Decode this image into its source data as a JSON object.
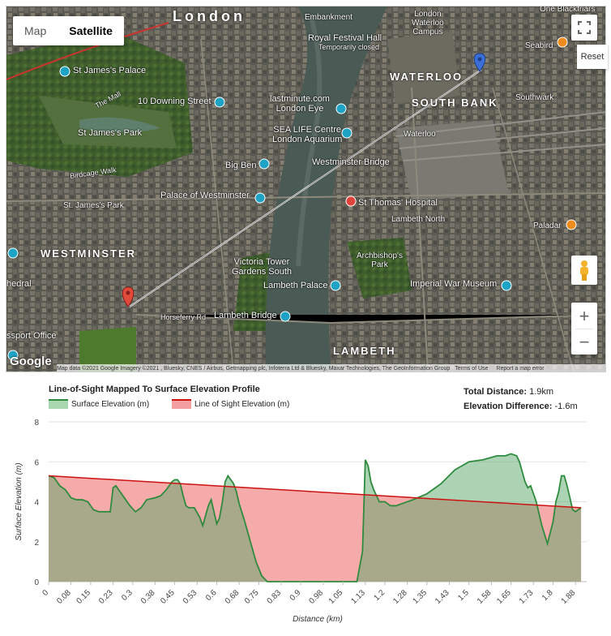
{
  "map": {
    "type_buttons": [
      "Map",
      "Satellite"
    ],
    "active_type": "Satellite",
    "reset_label": "Reset",
    "zoom_in": "+",
    "zoom_out": "−",
    "logo": "Google",
    "attribution": "Map data ©2021 Google Imagery ©2021 , Bluesky, CNES / Airbus, Getmapping plc, Infoterra Ltd & Bluesky, Maxar Technologies, The GeoInformation Group",
    "terms": "Terms of Use",
    "report": "Report a map error",
    "labels": {
      "london": "London",
      "embankment": "Embankment",
      "waterloo_campus": "London\nWaterloo\nCampus",
      "royal_festival_hall": "Royal Festival Hall",
      "temp_closed": "Temporarily closed",
      "one_blackfriars": "One Blackfriars",
      "seabird": "Seabird",
      "st_james_palace": "St James's Palace",
      "the_mall": "The Mall",
      "waterloo": "WATERLOO",
      "south_bank": "SOUTH BANK",
      "downing_street": "10 Downing Street",
      "lastminute": "lastminute.com\nLondon Eye",
      "southwark": "Southwark",
      "st_james_park": "St James's Park",
      "waterloo_station": "Waterloo",
      "sea_life": "SEA LIFE Centre\nLondon Aquarium",
      "big_ben": "Big Ben",
      "westminster_bridge": "Westminster Bridge",
      "birdcage_walk": "Birdcage Walk",
      "palace_westminster": "Palace of Westminster",
      "st_thomas": "St Thomas' Hospital",
      "st_james_park_stn": "St. James's Park",
      "lambeth_north": "Lambeth North",
      "paladar": "Paladar",
      "westminster": "WESTMINSTER",
      "archbishops_park": "Archbishop's\nPark",
      "victoria_tower": "Victoria Tower\nGardens South",
      "lambeth_palace": "Lambeth Palace",
      "imperial_war": "Imperial War Museum",
      "cathedral": "hedral",
      "horseferry": "Horseferry Rd",
      "lambeth_bridge": "Lambeth Bridge",
      "passport": "ssport Office",
      "lambeth": "LAMBETH"
    }
  },
  "chart_data": {
    "type": "area",
    "title": "Line-of-Sight Mapped To Surface Elevation Profile",
    "xlabel": "Distance (km)",
    "ylabel": "Surface Elevation (m)",
    "ylim": [
      0,
      8
    ],
    "yticks": [
      0,
      2,
      4,
      6,
      8
    ],
    "xtick_labels": [
      "0",
      "0.08",
      "0.15",
      "0.23",
      "0.3",
      "0.38",
      "0.45",
      "0.53",
      "0.6",
      "0.68",
      "0.75",
      "0.83",
      "0.9",
      "0.98",
      "1.05",
      "1.13",
      "1.2",
      "1.28",
      "1.35",
      "1.43",
      "1.5",
      "1.58",
      "1.65",
      "1.73",
      "1.8",
      "1.88"
    ],
    "xlim": [
      0,
      1.92
    ],
    "grid": "horizontal",
    "legend_position": "top-left",
    "series": [
      {
        "name": "Surface Elevation (m)",
        "color": "#2e8b3e",
        "fill": "#a9d8b0",
        "x": [
          0,
          0.02,
          0.04,
          0.06,
          0.08,
          0.1,
          0.12,
          0.14,
          0.16,
          0.18,
          0.2,
          0.22,
          0.23,
          0.24,
          0.25,
          0.27,
          0.29,
          0.31,
          0.33,
          0.35,
          0.38,
          0.4,
          0.42,
          0.44,
          0.45,
          0.46,
          0.47,
          0.48,
          0.49,
          0.5,
          0.52,
          0.54,
          0.55,
          0.57,
          0.58,
          0.6,
          0.61,
          0.62,
          0.63,
          0.64,
          0.65,
          0.66,
          0.67,
          0.68,
          0.7,
          0.72,
          0.74,
          0.76,
          0.78,
          0.8,
          0.82,
          0.84,
          1.0,
          1.1,
          1.12,
          1.13,
          1.14,
          1.15,
          1.16,
          1.17,
          1.18,
          1.2,
          1.22,
          1.24,
          1.26,
          1.3,
          1.35,
          1.4,
          1.45,
          1.5,
          1.55,
          1.6,
          1.63,
          1.65,
          1.67,
          1.68,
          1.69,
          1.7,
          1.71,
          1.72,
          1.74,
          1.76,
          1.78,
          1.8,
          1.81,
          1.82,
          1.83,
          1.84,
          1.85,
          1.86,
          1.87,
          1.88,
          1.9
        ],
        "y": [
          5.3,
          5.2,
          4.8,
          4.6,
          4.2,
          4.1,
          4.1,
          4.0,
          3.6,
          3.5,
          3.5,
          3.5,
          4.7,
          4.8,
          4.6,
          4.2,
          3.8,
          3.5,
          3.7,
          4.1,
          4.2,
          4.3,
          4.6,
          5.0,
          5.1,
          5.1,
          4.9,
          4.3,
          3.8,
          3.7,
          3.7,
          3.2,
          2.8,
          3.8,
          4.1,
          2.9,
          3.2,
          4.0,
          5.0,
          5.3,
          5.1,
          4.9,
          4.5,
          3.9,
          3.0,
          2.0,
          1.0,
          0.3,
          0.0,
          0.0,
          0.0,
          0.0,
          0.0,
          0.0,
          1.5,
          6.1,
          5.8,
          5.0,
          4.6,
          4.3,
          4.0,
          4.0,
          3.8,
          3.8,
          3.9,
          4.1,
          4.4,
          4.9,
          5.6,
          6.0,
          6.1,
          6.3,
          6.3,
          6.4,
          6.3,
          6.0,
          5.5,
          5.0,
          4.7,
          4.8,
          4.0,
          2.8,
          1.9,
          3.0,
          4.0,
          4.5,
          5.3,
          5.3,
          4.8,
          4.2,
          3.6,
          3.5,
          3.7
        ]
      },
      {
        "name": "Line of Sight Elevation (m)",
        "color": "#cc1111",
        "fill": "#f4a0a0",
        "x": [
          0,
          1.9
        ],
        "y": [
          5.3,
          3.7
        ]
      }
    ],
    "summary": {
      "total_distance_label": "Total Distance:",
      "total_distance_value": "1.9km",
      "elevation_diff_label": "Elevation Difference:",
      "elevation_diff_value": "-1.6m"
    }
  }
}
